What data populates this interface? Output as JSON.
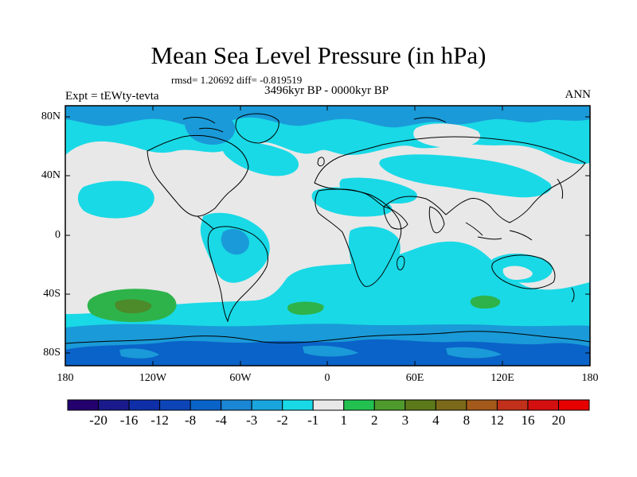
{
  "title": "Mean Sea Level Pressure (in hPa)",
  "stats": "rmsd= 1.20692 diff= -0.819519",
  "period": "3496kyr BP - 0000kyr BP",
  "experiment": "Expt = tEWty-tevta",
  "season": "ANN",
  "lat_labels": [
    "80N",
    "40N",
    "0",
    "40S",
    "80S"
  ],
  "lon_labels": [
    "180",
    "120W",
    "60W",
    "0",
    "60E",
    "120E",
    "180"
  ],
  "colors": {
    "background_field": "#e8e8e8",
    "light_cyan": "#19d9e6",
    "mid_blue": "#1a9ad8",
    "dark_blue": "#0a63c8",
    "green": "#2db34a",
    "dark_green": "#4d8a2a",
    "coast": "#000000"
  },
  "colorbar": {
    "labels": [
      "-20",
      "-16",
      "-12",
      "-8",
      "-4",
      "-3",
      "-2",
      "-1",
      "1",
      "2",
      "3",
      "4",
      "8",
      "12",
      "16",
      "20"
    ],
    "colors": [
      "#24006f",
      "#1a1a8c",
      "#0f2fa8",
      "#0d45b8",
      "#0a63c8",
      "#1a86d4",
      "#1aa6dd",
      "#19d9e6",
      "#e8e8e8",
      "#22c14f",
      "#4f9a2c",
      "#5d7a1a",
      "#7c6a1a",
      "#a35a1a",
      "#c0301a",
      "#d40f0f",
      "#e60000"
    ]
  }
}
